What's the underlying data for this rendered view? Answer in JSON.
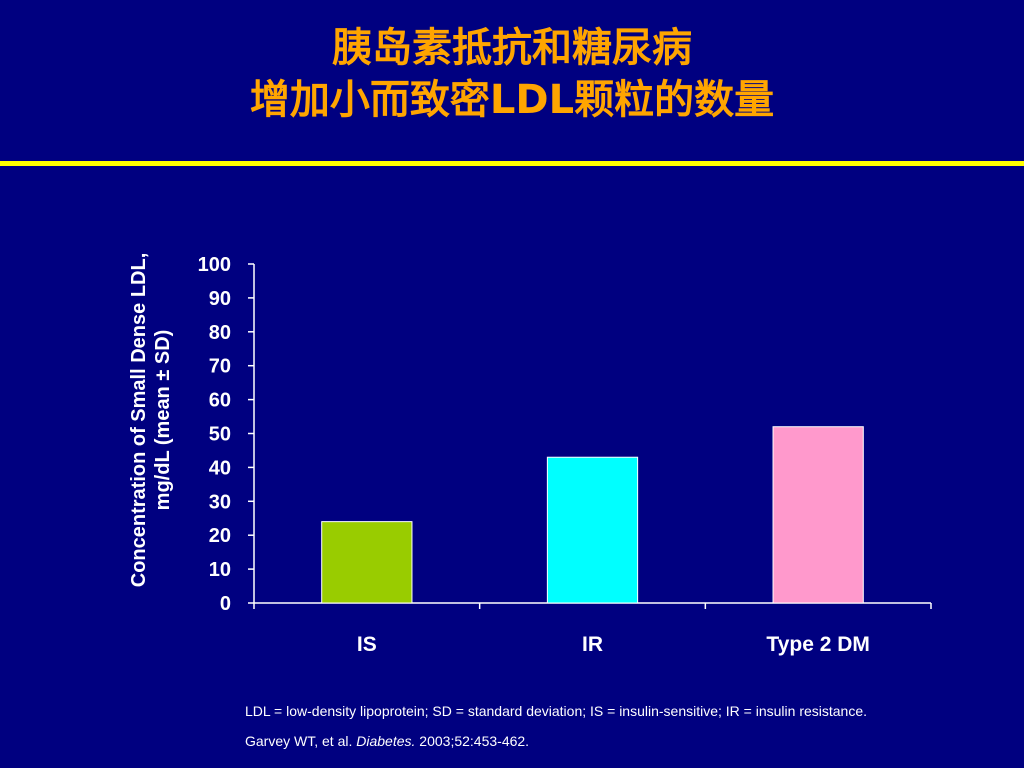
{
  "slide": {
    "title_line1": "胰岛素抵抗和糖尿病",
    "title_line2": "增加小而致密LDL颗粒的数量",
    "footnote_abbrev": "LDL = low-density lipoprotein; SD = standard deviation; IS = insulin-sensitive; IR = insulin resistance.",
    "citation": {
      "authors": "Garvey WT, et al. ",
      "journal": "Diabetes.",
      "details": " 2003;52:453-462."
    }
  },
  "colors": {
    "background": "#000080",
    "title": "#FFA500",
    "divider": "#FFFF00",
    "axis": "#FFFFFF"
  },
  "chart_data": {
    "type": "bar",
    "categories": [
      "IS",
      "IR",
      "Type 2 DM"
    ],
    "values": [
      24,
      43,
      52
    ],
    "bar_colors": [
      "#99CC00",
      "#00FFFF",
      "#FF99CC"
    ],
    "title": "",
    "xlabel": "",
    "ylabel_line1": "Concentration of Small Dense LDL,",
    "ylabel_line2": "mg/dL (mean ± SD)",
    "ylim": [
      0,
      100
    ],
    "yticks": [
      "0",
      "10",
      "20",
      "30",
      "40",
      "50",
      "60",
      "70",
      "80",
      "90",
      "100"
    ],
    "grid": false,
    "legend": "none"
  }
}
